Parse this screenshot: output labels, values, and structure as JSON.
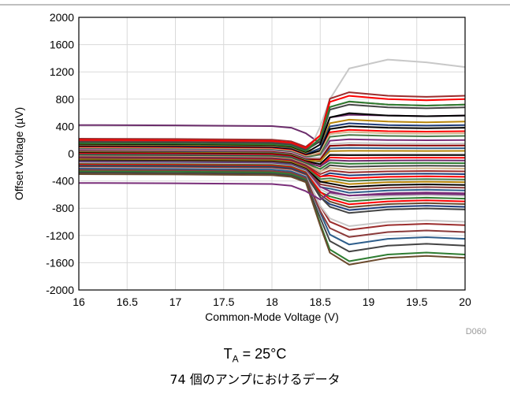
{
  "chart_data": {
    "type": "line",
    "xlabel": "Common-Mode Voltage (V)",
    "ylabel": "Offset Voltage (µV)",
    "xlim": [
      16,
      20
    ],
    "ylim": [
      -2000,
      2000
    ],
    "x_ticks": [
      "16",
      "16.5",
      "17",
      "17.5",
      "18",
      "18.5",
      "19",
      "19.5",
      "20"
    ],
    "y_ticks": [
      "2000",
      "1600",
      "1200",
      "800",
      "400",
      "0",
      "-400",
      "-800",
      "-1200",
      "-1600",
      "-2000"
    ],
    "grid": true,
    "figure_id": "D060",
    "series_shape": {
      "x_points": [
        16,
        17,
        18,
        18.2,
        18.35,
        18.5,
        18.6,
        18.8,
        19.2,
        19.6,
        20
      ],
      "description_note": ""
    },
    "series": [
      {
        "color": "#6b2d6b",
        "before": 420,
        "after": 560
      },
      {
        "color": "#c8c8c8",
        "before": 60,
        "after": 1270,
        "peak": 1380
      },
      {
        "color": "#9b2d2d",
        "before": 220,
        "after": 850
      },
      {
        "color": "#ff0000",
        "before": 200,
        "after": 800
      },
      {
        "color": "#8b3a3a",
        "before": 180,
        "after": 720
      },
      {
        "color": "#444444",
        "before": 170,
        "after": 680
      },
      {
        "color": "#2e7d32",
        "before": 150,
        "after": 720
      },
      {
        "color": "#000000",
        "before": 130,
        "after": 560
      },
      {
        "color": "#b8860b",
        "before": 120,
        "after": 470
      },
      {
        "color": "#1f3d7a",
        "before": 110,
        "after": 420
      },
      {
        "color": "#000000",
        "before": 100,
        "after": 380
      },
      {
        "color": "#ff0000",
        "before": 90,
        "after": 330
      },
      {
        "color": "#d2b48c",
        "before": 80,
        "after": 300
      },
      {
        "color": "#4a7a4a",
        "before": 70,
        "after": 260
      },
      {
        "color": "#7a2f7a",
        "before": 60,
        "after": 200
      },
      {
        "color": "#c8c8c8",
        "before": 50,
        "after": 150
      },
      {
        "color": "#8b0000",
        "before": 40,
        "after": 120
      },
      {
        "color": "#2e5e8b",
        "before": 30,
        "after": 80
      },
      {
        "color": "#b8860b",
        "before": 20,
        "after": 40
      },
      {
        "color": "#000000",
        "before": 10,
        "after": -20
      },
      {
        "color": "#ff0000",
        "before": 0,
        "after": -60
      },
      {
        "color": "#6b2d6b",
        "before": -10,
        "after": -100
      },
      {
        "color": "#2e7d32",
        "before": -20,
        "after": -140
      },
      {
        "color": "#444444",
        "before": -30,
        "after": -180
      },
      {
        "color": "#d2b48c",
        "before": -40,
        "after": -220
      },
      {
        "color": "#9b2d2d",
        "before": -50,
        "after": -260
      },
      {
        "color": "#1f3d7a",
        "before": -60,
        "after": -300
      },
      {
        "color": "#ff0000",
        "before": -70,
        "after": -340
      },
      {
        "color": "#4a7a4a",
        "before": -80,
        "after": -380
      },
      {
        "color": "#b8860b",
        "before": -90,
        "after": -420
      },
      {
        "color": "#000000",
        "before": -100,
        "after": -460
      },
      {
        "color": "#8b3a3a",
        "before": -110,
        "after": -500
      },
      {
        "color": "#2e5e8b",
        "before": -120,
        "after": -540
      },
      {
        "color": "#7a2f7a",
        "before": -130,
        "after": -580
      },
      {
        "color": "#c8c8c8",
        "before": -140,
        "after": -620
      },
      {
        "color": "#2e7d32",
        "before": -150,
        "after": -660
      },
      {
        "color": "#ff0000",
        "before": -160,
        "after": -700
      },
      {
        "color": "#6b4a2d",
        "before": -170,
        "after": -740
      },
      {
        "color": "#1f3d7a",
        "before": -180,
        "after": -780
      },
      {
        "color": "#444444",
        "before": -190,
        "after": -820
      },
      {
        "color": "#9b2d2d",
        "before": -200,
        "after": -1050
      },
      {
        "color": "#c8c8c8",
        "before": -210,
        "after": -1000
      },
      {
        "color": "#2e5e8b",
        "before": -220,
        "after": -1250
      },
      {
        "color": "#8b3a3a",
        "before": -240,
        "after": -1150
      },
      {
        "color": "#2e7d32",
        "before": -260,
        "after": -1480
      },
      {
        "color": "#444444",
        "before": -280,
        "after": -1350
      },
      {
        "color": "#6b4a2d",
        "before": -300,
        "after": -1530
      },
      {
        "color": "#7a2f7a",
        "before": -430,
        "after": -600
      }
    ]
  },
  "captions": {
    "ta_prefix": "T",
    "ta_sub": "A",
    "ta_rest": " = 25°C",
    "jp_note": "74 個のアンプにおけるデータ"
  }
}
